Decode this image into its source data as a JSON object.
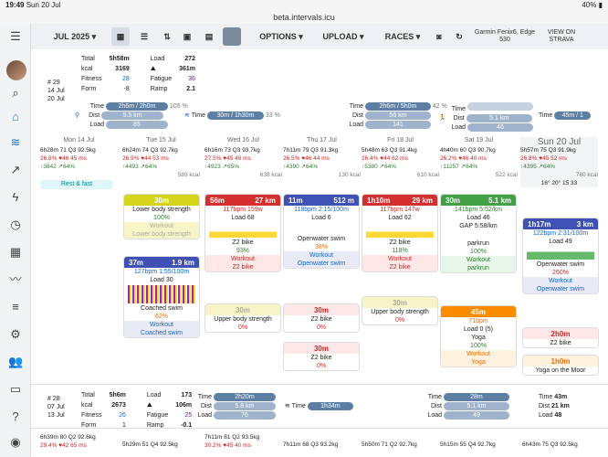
{
  "status": {
    "time": "19:49",
    "date": "Sun 20 Jul",
    "battery": "40%"
  },
  "url": "beta.intervals.icu",
  "toolbar": {
    "month": "JUL 2025",
    "options": "OPTIONS",
    "upload": "UPLOAD",
    "races": "RACES",
    "device": "Garmin Fenix6, Edge 530",
    "strava": "VIEW ON STRAVA"
  },
  "week29": {
    "num": "# 29",
    "start": "14 Jul",
    "end": "20 Jul",
    "total_l": "Total",
    "total": "5h58m",
    "load_l": "Load",
    "load": "272",
    "kcal_l": "kcal",
    "kcal": "3169",
    "dist": "361m",
    "fitness_l": "Fitness",
    "fitness": "28",
    "fatigue_l": "Fatigue",
    "fatigue": "36",
    "form_l": "Form",
    "form": "-8",
    "ramp_l": "Ramp",
    "ramp": "2.1",
    "bike": {
      "time": "2h6m / 2h0m",
      "pct": "105 %",
      "dist": "5.5 km",
      "load": "85"
    },
    "swim": {
      "time": "30m / 1h30m",
      "pct": "33 %"
    },
    "run1": {
      "time": "2h6m / 5h0m",
      "pct": "42 %",
      "dist": "56 km",
      "load": "141"
    },
    "run2": {
      "dist": "5.1 km",
      "load": "46"
    },
    "tlabel": "Time",
    "dlabel": "Dist",
    "llabel": "Load",
    "extra": "45m / 1"
  },
  "days": [
    {
      "head": "Mon 14 Jul",
      "l1": "6h28m 71 Q3 92.5kg",
      "l2": "26.8% ♥46 45 ms",
      "l3": "↑3842 ↗64%",
      "l4": "",
      "rest": "Rest & fast"
    },
    {
      "head": "Tue 15 Jul",
      "l1": "6h24m 74 Q3 92.7kg",
      "l2": "26.9% ♥44 53 ms",
      "l3": "↑4493 ↗64%",
      "l4": "589 kcal"
    },
    {
      "head": "Wed 16 Jul",
      "l1": "6h16m 73 Q3 93.7kg",
      "l2": "27.5% ♥45 46 ms",
      "l3": "↑4923 ↗65%",
      "l4": "638 kcal"
    },
    {
      "head": "Thu 17 Jul",
      "l1": "7h11m 79 Q3 91.3kg",
      "l2": "26.5% ♥46 44 ms",
      "l3": "↑4390 ↗64%",
      "l4": "130 kcal"
    },
    {
      "head": "Fri 18 Jul",
      "l1": "5h48m 63 Q3 91.4kg",
      "l2": "26.4% ♥44 62 ms",
      "l3": "↑5380 ↗64%",
      "l4": "610 kcal"
    },
    {
      "head": "Sat 19 Jul",
      "l1": "4h40m 60 Q3 90.7kg",
      "l2": "26.2% ♥46 40 ms",
      "l3": "↑11257 ↗64%",
      "l4": "522 kcal"
    },
    {
      "head": "Sun 20 Jul",
      "l1": "5h57m 75 Q3 91.9kg",
      "l2": "26.8% ♥45 52 ms",
      "l3": "↑4395 ↗64%",
      "l4": "780 kcal",
      "weather": "16° 20°   15 33"
    }
  ],
  "cards": {
    "tue1": {
      "h1": "30m",
      "l1": "Lower body strength",
      "l2": "100%",
      "l3": "Workout",
      "l4": "Lower body strength"
    },
    "tue2": {
      "h1": "37m",
      "h2": "1.9 km",
      "l1": "127bpm 1:55/100m",
      "l2": "Load 30",
      "l3": "Coached swim",
      "l4": "62%",
      "l5": "Workout",
      "l6": "Coached swim"
    },
    "wed1": {
      "h1": "56m",
      "h2": "27 km",
      "l1": "117bpm 159w",
      "l2": "Load 68",
      "l3": "Z2 bike",
      "l4": "93%",
      "l5": "Workout",
      "l6": "Z2 bike"
    },
    "wed2": {
      "h1": "30m",
      "l1": "Upper body strength",
      "l2": "0%"
    },
    "thu1": {
      "h1": "11m",
      "h2": "512 m",
      "l1": "118bpm 2:15/100m",
      "l2": "Load 6",
      "l3": "Openwater swim",
      "l4": "38%",
      "l5": "Workout",
      "l6": "Openwater swim"
    },
    "thu2": {
      "h1": "30m",
      "l1": "Z2 bike",
      "l2": "0%"
    },
    "thu3": {
      "h1": "30m",
      "l1": "Z2 bike",
      "l2": "0%"
    },
    "fri1": {
      "h1": "1h10m",
      "h2": "29 km",
      "l1": "117bpm 147w",
      "l2": "Load 62",
      "l3": "Z2 bike",
      "l4": "118%",
      "l5": "Workout",
      "l6": "Z2 bike"
    },
    "fri2": {
      "h1": "30m",
      "l1": "Upper body strength",
      "l2": "0%"
    },
    "sat1": {
      "h1": "30m",
      "h2": "5.1 km",
      "l1": "141bpm 5:52/km",
      "l2": "Load 46",
      "l3": "GAP 5:58/km",
      "l4": "parkrun",
      "l5": "100%",
      "l6": "Workout",
      "l7": "parkrun"
    },
    "sat2": {
      "h1": "45m",
      "l1": "71bpm",
      "l2": "Load 0 (5)",
      "l3": "Yoga",
      "l4": "100%",
      "l5": "Workout",
      "l6": "Yoga"
    },
    "sun1": {
      "h1": "1h17m",
      "h2": "3 km",
      "l1": "122bpm 2:31/100m",
      "l2": "Load 49",
      "l3": "Openwater swim",
      "l4": "260%",
      "l5": "Workout",
      "l6": "Openwater swim"
    },
    "sun2": {
      "h1": "2h0m",
      "l1": "Z2 bike"
    },
    "sun3": {
      "h1": "1h0m",
      "l1": "Yoga on the Moor"
    }
  },
  "week28": {
    "num": "# 28",
    "start": "07 Jul",
    "end": "13 Jul",
    "total": "5h6m",
    "load": "173",
    "kcal": "2673",
    "dist": "106m",
    "fitness": "26",
    "fatigue": "25",
    "form": "1",
    "ramp": "-0.1",
    "bike": {
      "time": "2h20m",
      "dist": "5.8 km",
      "load": "76"
    },
    "swim": {
      "dist": "1h34m"
    },
    "run": {
      "time": "28m",
      "dist": "5.1 km",
      "load": "49"
    },
    "right": {
      "time": "43m",
      "dist": "21 km",
      "load": "48"
    }
  },
  "bottom": [
    "6h39m 80 Q2 92.6kg",
    "29.4% ♥42 65 ms",
    "5h29m 51 Q4 92.5kg",
    "7h11m 81 Q2 93.5kg",
    "30.2% ♥45 40 ms",
    "7h11m 68 Q3 93.2kg",
    "5h50m 71 Q2 92.7kg",
    "5h15m 55 Q4 92.7kg",
    "6h43m 75 Q3 92.5kg"
  ]
}
